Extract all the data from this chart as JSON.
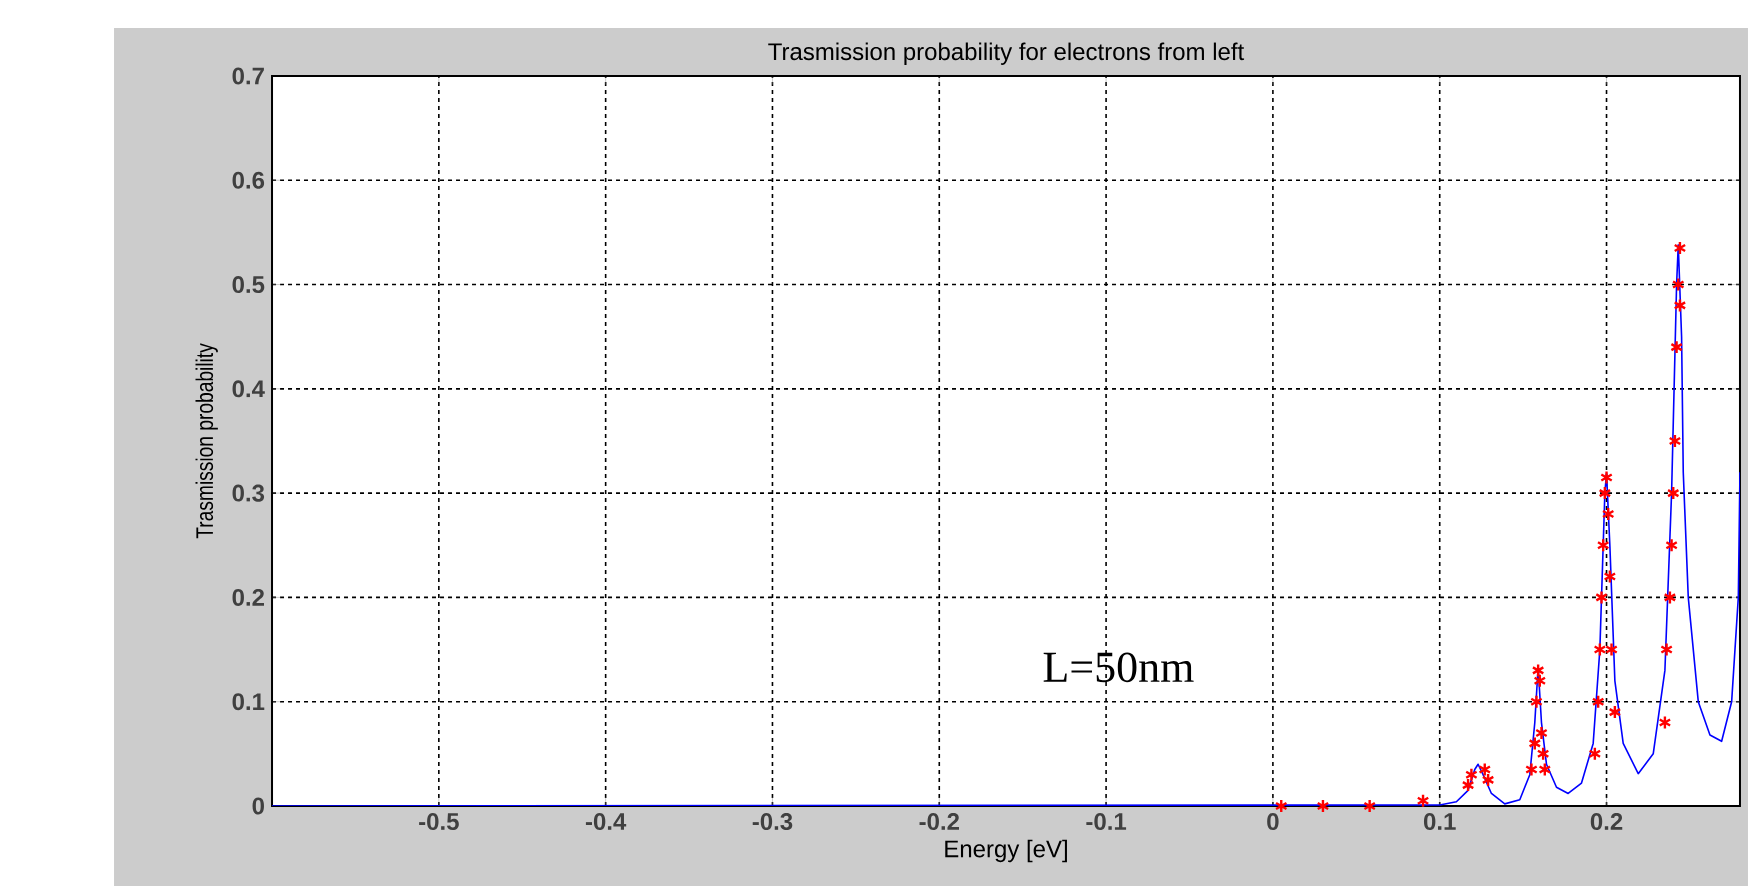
{
  "chart_data": {
    "type": "line",
    "title": "Trasmission probability for electrons from left",
    "xlabel": "Energy [eV]",
    "ylabel": "Trasmission probability",
    "annotations": [
      "L=50nm"
    ],
    "xlim": [
      -0.6,
      0.28
    ],
    "ylim": [
      0,
      0.7
    ],
    "xticks": [
      -0.5,
      -0.4,
      -0.3,
      -0.2,
      -0.1,
      0,
      0.1,
      0.2
    ],
    "yticks": [
      0,
      0.1,
      0.2,
      0.3,
      0.4,
      0.5,
      0.6,
      0.7
    ],
    "grid": true,
    "series": [
      {
        "color": "#0000ff",
        "marker": "none",
        "x": [
          -0.6,
          0.1,
          0.11,
          0.117,
          0.121,
          0.123,
          0.126,
          0.131,
          0.139,
          0.148,
          0.154,
          0.157,
          0.159,
          0.161,
          0.164,
          0.17,
          0.177,
          0.185,
          0.192,
          0.196,
          0.199,
          0.2,
          0.202,
          0.205,
          0.21,
          0.219,
          0.228,
          0.235,
          0.239,
          0.242,
          0.243,
          0.245,
          0.246,
          0.249,
          0.255,
          0.262,
          0.269,
          0.275,
          0.279,
          0.28
        ],
        "values": [
          0,
          0.001,
          0.004,
          0.015,
          0.035,
          0.04,
          0.03,
          0.012,
          0.002,
          0.006,
          0.03,
          0.08,
          0.133,
          0.08,
          0.04,
          0.018,
          0.012,
          0.022,
          0.06,
          0.15,
          0.3,
          0.319,
          0.25,
          0.12,
          0.06,
          0.031,
          0.05,
          0.13,
          0.3,
          0.5,
          0.538,
          0.45,
          0.32,
          0.2,
          0.1,
          0.068,
          0.062,
          0.1,
          0.2,
          0.32
        ]
      },
      {
        "type": "scatter",
        "color": "#ff0000",
        "marker": "cross",
        "x": [
          0.005,
          0.03,
          0.058,
          0.09,
          0.117,
          0.119,
          0.127,
          0.129,
          0.155,
          0.157,
          0.158,
          0.159,
          0.16,
          0.161,
          0.162,
          0.163,
          0.193,
          0.195,
          0.196,
          0.197,
          0.198,
          0.199,
          0.2,
          0.201,
          0.202,
          0.203,
          0.205,
          0.235,
          0.236,
          0.238,
          0.239,
          0.24,
          0.241,
          0.242,
          0.243,
          0.244,
          0.244
        ],
        "values": [
          0,
          0,
          0,
          0.005,
          0.02,
          0.03,
          0.035,
          0.025,
          0.035,
          0.06,
          0.1,
          0.13,
          0.12,
          0.07,
          0.05,
          0.035,
          0.05,
          0.1,
          0.15,
          0.2,
          0.25,
          0.3,
          0.315,
          0.28,
          0.22,
          0.15,
          0.09,
          0.08,
          0.15,
          0.2,
          0.25,
          0.3,
          0.35,
          0.44,
          0.5,
          0.535,
          0.48
        ]
      }
    ]
  }
}
